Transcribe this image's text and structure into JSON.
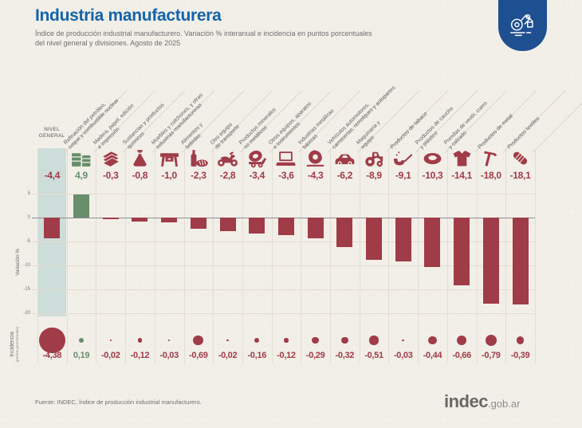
{
  "header": {
    "title": "Industria manufacturera",
    "subtitle_line1": "Índice de producción industrial manufacturero. Variación % interanual e incidencia en puntos porcentuales",
    "subtitle_line2": "del nivel general y divisiones. Agosto de 2025"
  },
  "chart_data": {
    "type": "bar",
    "title": "Industria manufacturera. Variación % interanual e incidencia en puntos porcentuales del nivel general y divisiones. Agosto de 2025",
    "ylabel": "Variación %",
    "ylabel2_line1": "Incidencia",
    "ylabel2_line2": "(puntos porcentuales)",
    "ylim": [
      -20,
      5
    ],
    "yticks": [
      "5",
      "0",
      "-5",
      "-10",
      "-15",
      "-20"
    ],
    "ytick_values": [
      5,
      0,
      -5,
      -10,
      -15,
      -20
    ],
    "grid": true,
    "general_level_label": "NIVEL GENERAL",
    "categories": [
      "Nivel general",
      "Refinación del petróleo, coque y combustible nuclear",
      "Madera, papel, edición e impresión",
      "Sustancias y productos químicos",
      "Muebles y colchones, y otras industrias manufactureras",
      "Alimentos y bebidas",
      "Otro equipo de transporte",
      "Productos minerales no metálicos",
      "Otros equipos, aparatos e instrumentos",
      "Industrias metálicas básicas",
      "Vehículos automotores, carrocerías, remolques y autopartes",
      "Maquinaria y equipo",
      "Productos de tabaco",
      "Productos de caucho y plástico",
      "Prendas de vestir, cuero y calzado",
      "Productos de metal",
      "Productos textiles"
    ],
    "series": [
      {
        "name": "Variación % interanual",
        "type": "bar",
        "values": [
          -4.4,
          4.9,
          -0.3,
          -0.8,
          -1.0,
          -2.3,
          -2.8,
          -3.4,
          -3.6,
          -4.3,
          -6.2,
          -8.9,
          -9.1,
          -10.3,
          -14.1,
          -18.0,
          -18.1
        ]
      },
      {
        "name": "Incidencia en puntos porcentuales",
        "type": "bubble",
        "values": [
          -4.38,
          0.19,
          -0.02,
          -0.12,
          -0.03,
          -0.69,
          -0.02,
          -0.16,
          -0.12,
          -0.29,
          -0.32,
          -0.51,
          -0.03,
          -0.44,
          -0.66,
          -0.79,
          -0.39
        ]
      }
    ],
    "columns": [
      {
        "label_lines": [],
        "icon": null,
        "variation": -4.4,
        "variation_label": "-4,4",
        "incidence": -4.38,
        "incidence_label": "-4,38"
      },
      {
        "label_lines": [
          "Refinación del petróleo,",
          "coque y combustible nuclear"
        ],
        "icon": "oil-barrels-icon",
        "variation": 4.9,
        "variation_label": "4,9",
        "incidence": 0.19,
        "incidence_label": "0,19"
      },
      {
        "label_lines": [
          "Madera, papel, edición",
          "e impresión"
        ],
        "icon": "paper-stack-icon",
        "variation": -0.3,
        "variation_label": "-0,3",
        "incidence": -0.02,
        "incidence_label": "-0,02"
      },
      {
        "label_lines": [
          "Sustancias y productos",
          "químicos"
        ],
        "icon": "flask-icon",
        "variation": -0.8,
        "variation_label": "-0,8",
        "incidence": -0.12,
        "incidence_label": "-0,12"
      },
      {
        "label_lines": [
          "Muebles y colchones, y otras",
          "industrias manufactureras"
        ],
        "icon": "furniture-icon",
        "variation": -1.0,
        "variation_label": "-1,0",
        "incidence": -0.03,
        "incidence_label": "-0,03"
      },
      {
        "label_lines": [
          "Alimentos y",
          "bebidas"
        ],
        "icon": "bottle-bread-icon",
        "variation": -2.3,
        "variation_label": "-2,3",
        "incidence": -0.69,
        "incidence_label": "-0,69"
      },
      {
        "label_lines": [
          "Otro equipo",
          "de transporte"
        ],
        "icon": "motorcycle-icon",
        "variation": -2.8,
        "variation_label": "-2,8",
        "incidence": -0.02,
        "incidence_label": "-0,02"
      },
      {
        "label_lines": [
          "Productos minerales",
          "no metálicos"
        ],
        "icon": "cement-mixer-icon",
        "variation": -3.4,
        "variation_label": "-3,4",
        "incidence": -0.16,
        "incidence_label": "-0,16"
      },
      {
        "label_lines": [
          "Otros equipos, aparatos",
          "e instrumentos"
        ],
        "icon": "laptop-icon",
        "variation": -3.6,
        "variation_label": "-3,6",
        "incidence": -0.12,
        "incidence_label": "-0,12"
      },
      {
        "label_lines": [
          "Industrias metálicas",
          "básicas"
        ],
        "icon": "metal-coil-icon",
        "variation": -4.3,
        "variation_label": "-4,3",
        "incidence": -0.29,
        "incidence_label": "-0,29"
      },
      {
        "label_lines": [
          "Vehículos automotores,",
          "carrocerías, remolques y autopartes"
        ],
        "icon": "car-icon",
        "variation": -6.2,
        "variation_label": "-6,2",
        "incidence": -0.32,
        "incidence_label": "-0,32"
      },
      {
        "label_lines": [
          "Maquinaria y",
          "equipo"
        ],
        "icon": "tractor-icon",
        "variation": -8.9,
        "variation_label": "-8,9",
        "incidence": -0.51,
        "incidence_label": "-0,51"
      },
      {
        "label_lines": [
          "Productos de tabaco"
        ],
        "icon": "pipe-icon",
        "variation": -9.1,
        "variation_label": "-9,1",
        "incidence": -0.03,
        "incidence_label": "-0,03"
      },
      {
        "label_lines": [
          "Productos de caucho",
          "y plástico"
        ],
        "icon": "tire-icon",
        "variation": -10.3,
        "variation_label": "-10,3",
        "incidence": -0.44,
        "incidence_label": "-0,44"
      },
      {
        "label_lines": [
          "Prendas de vestir, cuero",
          "y calzado"
        ],
        "icon": "sweater-icon",
        "variation": -14.1,
        "variation_label": "-14,1",
        "incidence": -0.66,
        "incidence_label": "-0,66"
      },
      {
        "label_lines": [
          "Productos de metal"
        ],
        "icon": "hammer-icon",
        "variation": -18.0,
        "variation_label": "-18,0",
        "incidence": -0.79,
        "incidence_label": "-0,79"
      },
      {
        "label_lines": [
          "Productos textiles"
        ],
        "icon": "yarn-roll-icon",
        "variation": -18.1,
        "variation_label": "-18,1",
        "incidence": -0.39,
        "incidence_label": "-0,39"
      }
    ],
    "colors": {
      "negative": "#a03b48",
      "positive": "#688e6c",
      "general_band": "#cdddd9",
      "title_blue": "#1464ab",
      "badge_blue": "#1e4f91"
    }
  },
  "footer": {
    "source": "Fuente: INDEC, Índice de producción industrial manufacturero.",
    "logo_main": "indec",
    "logo_suffix": ".gob.ar"
  }
}
